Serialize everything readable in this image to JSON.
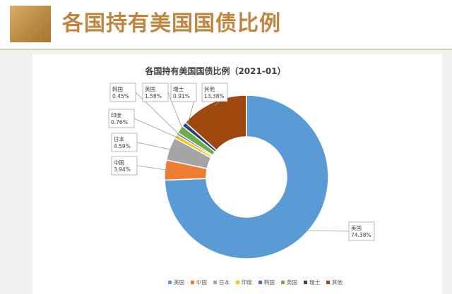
{
  "header": {
    "title": "各国持有美国国债比例"
  },
  "chart_data": {
    "type": "pie",
    "title": "各国持有美国国债比例（2021-01）",
    "categories": [
      "美国",
      "中国",
      "日本",
      "印度",
      "韩国",
      "英国",
      "瑞士",
      "其他"
    ],
    "values": [
      74.38,
      3.94,
      4.59,
      0.76,
      0.45,
      1.58,
      0.91,
      13.38
    ],
    "value_labels": [
      "74.38%",
      "3.94%",
      "4.59%",
      "0.76%",
      "0.45%",
      "1.58%",
      "0.91%",
      "13.38%"
    ],
    "colors": [
      "#5b9bd5",
      "#ed7d31",
      "#a5a5a5",
      "#ffc000",
      "#4472c4",
      "#70ad47",
      "#264478",
      "#9e480e"
    ],
    "donut": true,
    "legend_position": "bottom"
  }
}
